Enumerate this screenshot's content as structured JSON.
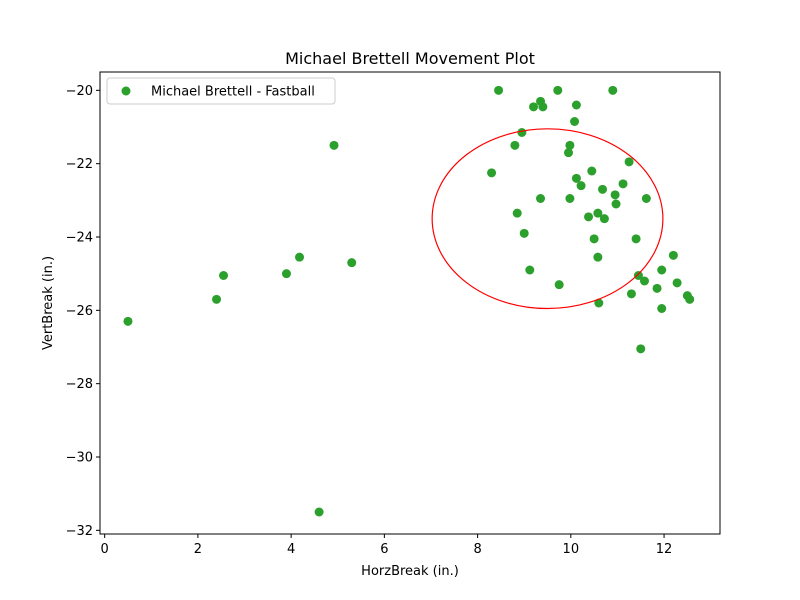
{
  "chart_data": {
    "type": "scatter",
    "title": "Michael Brettell Movement Plot",
    "xlabel": "HorzBreak (in.)",
    "ylabel": "VertBreak (in.)",
    "xlim": [
      -0.1,
      13.2
    ],
    "ylim": [
      -32.1,
      -19.5
    ],
    "xticks": [
      0,
      2,
      4,
      6,
      8,
      10,
      12
    ],
    "yticks": [
      -32,
      -30,
      -28,
      -26,
      -24,
      -22,
      -20
    ],
    "xtick_labels": [
      "0",
      "2",
      "4",
      "6",
      "8",
      "10",
      "12"
    ],
    "ytick_labels": [
      "−32",
      "−30",
      "−28",
      "−26",
      "−24",
      "−22",
      "−20"
    ],
    "grid": false,
    "legend_position": "top-left",
    "series": [
      {
        "name": "Michael Brettell - Fastball",
        "color": "#2ca02c",
        "points": [
          [
            0.5,
            -26.3
          ],
          [
            2.4,
            -25.7
          ],
          [
            2.55,
            -25.05
          ],
          [
            3.9,
            -25.0
          ],
          [
            4.18,
            -24.55
          ],
          [
            4.6,
            -31.5
          ],
          [
            4.92,
            -21.5
          ],
          [
            5.3,
            -24.7
          ],
          [
            8.3,
            -22.25
          ],
          [
            8.45,
            -20.0
          ],
          [
            8.8,
            -21.5
          ],
          [
            8.85,
            -23.35
          ],
          [
            8.95,
            -21.15
          ],
          [
            9.0,
            -23.9
          ],
          [
            9.12,
            -24.9
          ],
          [
            9.2,
            -20.45
          ],
          [
            9.35,
            -22.95
          ],
          [
            9.35,
            -20.3
          ],
          [
            9.4,
            -20.45
          ],
          [
            9.72,
            -20.0
          ],
          [
            9.75,
            -25.3
          ],
          [
            9.95,
            -21.7
          ],
          [
            9.98,
            -21.5
          ],
          [
            9.98,
            -22.95
          ],
          [
            10.08,
            -20.85
          ],
          [
            10.12,
            -20.4
          ],
          [
            10.12,
            -22.4
          ],
          [
            10.22,
            -22.6
          ],
          [
            10.38,
            -23.45
          ],
          [
            10.45,
            -22.2
          ],
          [
            10.5,
            -24.05
          ],
          [
            10.58,
            -23.35
          ],
          [
            10.58,
            -24.55
          ],
          [
            10.6,
            -25.8
          ],
          [
            10.68,
            -22.7
          ],
          [
            10.72,
            -23.5
          ],
          [
            10.9,
            -20.0
          ],
          [
            10.95,
            -22.85
          ],
          [
            10.97,
            -23.1
          ],
          [
            11.12,
            -22.55
          ],
          [
            11.25,
            -21.95
          ],
          [
            11.3,
            -25.55
          ],
          [
            11.4,
            -24.05
          ],
          [
            11.45,
            -25.05
          ],
          [
            11.5,
            -27.05
          ],
          [
            11.58,
            -25.2
          ],
          [
            11.62,
            -22.95
          ],
          [
            11.85,
            -25.4
          ],
          [
            11.95,
            -24.9
          ],
          [
            11.95,
            -25.95
          ],
          [
            12.2,
            -24.5
          ],
          [
            12.28,
            -25.25
          ],
          [
            12.5,
            -25.6
          ],
          [
            12.55,
            -25.7
          ]
        ]
      }
    ],
    "ellipse": {
      "color": "#ff0000",
      "center": [
        9.5,
        -23.5
      ],
      "width": 4.95,
      "height": 4.9
    }
  }
}
